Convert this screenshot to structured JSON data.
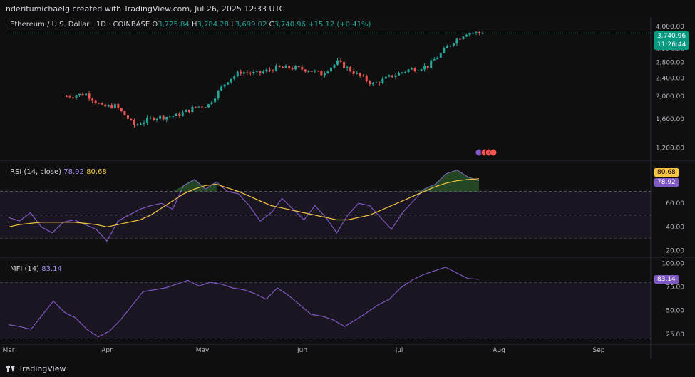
{
  "header": {
    "credit": "nderitumichaelg created with TradingView.com, Jul 26, 2025 12:33 UTC"
  },
  "main_legend": {
    "symbol": "Ethereum / U.S. Dollar · 1D · COINBASE",
    "o_label": "O",
    "o": "3,725.84",
    "h_label": "H",
    "h": "3,784.28",
    "l_label": "L",
    "l": "3,699.02",
    "c_label": "C",
    "c": "3,740.96",
    "change": "+15.12 (+0.41%)"
  },
  "price_badge": {
    "price": "3,740.96",
    "countdown": "11:26:44"
  },
  "rsi_legend": {
    "name": "RSI (14, close)",
    "rsi": "78.92",
    "ma": "80.68"
  },
  "mfi_legend": {
    "name": "MFI (14)",
    "mfi": "83.14"
  },
  "footer": {
    "brand": "TradingView"
  },
  "colors": {
    "up": "#26a69a",
    "down": "#ef5350",
    "rsi": "#7e57c2",
    "rsi_ma": "#f5c542",
    "mfi": "#7e57c2",
    "price_badge": "#089981"
  },
  "chart_data": [
    {
      "type": "candlestick",
      "title": "Ethereum / U.S. Dollar · 1D · COINBASE",
      "x_ticks": [
        "Mar",
        "Apr",
        "May",
        "Jun",
        "Jul",
        "Aug",
        "Sep"
      ],
      "y_ticks": [
        "4,000.00",
        "3,200.00",
        "2,800.00",
        "2,400.00",
        "2,000.00",
        "1,600.00",
        "1,200.00"
      ],
      "ylim": [
        1100,
        4200
      ],
      "close_points": [
        {
          "x": "2025-03-19",
          "y": 2000
        },
        {
          "x": "2025-03-25",
          "y": 2050
        },
        {
          "x": "2025-03-30",
          "y": 1800
        },
        {
          "x": "2025-04-03",
          "y": 1820
        },
        {
          "x": "2025-04-09",
          "y": 1500
        },
        {
          "x": "2025-04-15",
          "y": 1620
        },
        {
          "x": "2025-04-22",
          "y": 1650
        },
        {
          "x": "2025-04-28",
          "y": 1800
        },
        {
          "x": "2025-05-02",
          "y": 1840
        },
        {
          "x": "2025-05-08",
          "y": 2350
        },
        {
          "x": "2025-05-12",
          "y": 2550
        },
        {
          "x": "2025-05-17",
          "y": 2500
        },
        {
          "x": "2025-05-23",
          "y": 2650
        },
        {
          "x": "2025-05-28",
          "y": 2650
        },
        {
          "x": "2025-06-02",
          "y": 2600
        },
        {
          "x": "2025-06-06",
          "y": 2500
        },
        {
          "x": "2025-06-11",
          "y": 2800
        },
        {
          "x": "2025-06-16",
          "y": 2540
        },
        {
          "x": "2025-06-22",
          "y": 2250
        },
        {
          "x": "2025-06-27",
          "y": 2420
        },
        {
          "x": "2025-07-03",
          "y": 2600
        },
        {
          "x": "2025-07-09",
          "y": 2700
        },
        {
          "x": "2025-07-13",
          "y": 3050
        },
        {
          "x": "2025-07-17",
          "y": 3450
        },
        {
          "x": "2025-07-21",
          "y": 3750
        },
        {
          "x": "2025-07-26",
          "y": 3740.96
        }
      ]
    },
    {
      "type": "line",
      "title": "RSI (14, close)",
      "y_ticks": [
        "60.00",
        "40.00",
        "20.00"
      ],
      "ylim": [
        15,
        95
      ],
      "bands": [
        30,
        50,
        70
      ],
      "series": [
        {
          "name": "RSI",
          "values": [
            48,
            45,
            52,
            40,
            35,
            44,
            46,
            42,
            38,
            28,
            45,
            50,
            55,
            58,
            60,
            55,
            75,
            80,
            72,
            78,
            70,
            68,
            58,
            45,
            52,
            64,
            55,
            46,
            58,
            48,
            35,
            50,
            60,
            58,
            48,
            38,
            52,
            62,
            72,
            76,
            85,
            88,
            82,
            79
          ]
        },
        {
          "name": "MA",
          "values": [
            40,
            42,
            43,
            44,
            44,
            44,
            44,
            43,
            42,
            40,
            42,
            44,
            46,
            50,
            56,
            62,
            68,
            72,
            75,
            76,
            73,
            70,
            66,
            62,
            58,
            56,
            54,
            52,
            50,
            48,
            46,
            46,
            48,
            50,
            54,
            58,
            62,
            66,
            70,
            74,
            77,
            79,
            80,
            80.68
          ]
        }
      ]
    },
    {
      "type": "line",
      "title": "MFI (14)",
      "y_ticks": [
        "100.00",
        "75.00",
        "50.00",
        "25.00"
      ],
      "ylim": [
        15,
        105
      ],
      "bands": [
        20,
        80
      ],
      "series": [
        {
          "name": "MFI",
          "values": [
            35,
            33,
            30,
            45,
            60,
            48,
            42,
            30,
            22,
            28,
            40,
            55,
            70,
            72,
            74,
            78,
            82,
            76,
            80,
            78,
            74,
            72,
            68,
            62,
            74,
            66,
            56,
            46,
            44,
            40,
            33,
            40,
            48,
            56,
            62,
            74,
            82,
            88,
            92,
            96,
            90,
            84,
            83.14
          ]
        }
      ]
    }
  ]
}
